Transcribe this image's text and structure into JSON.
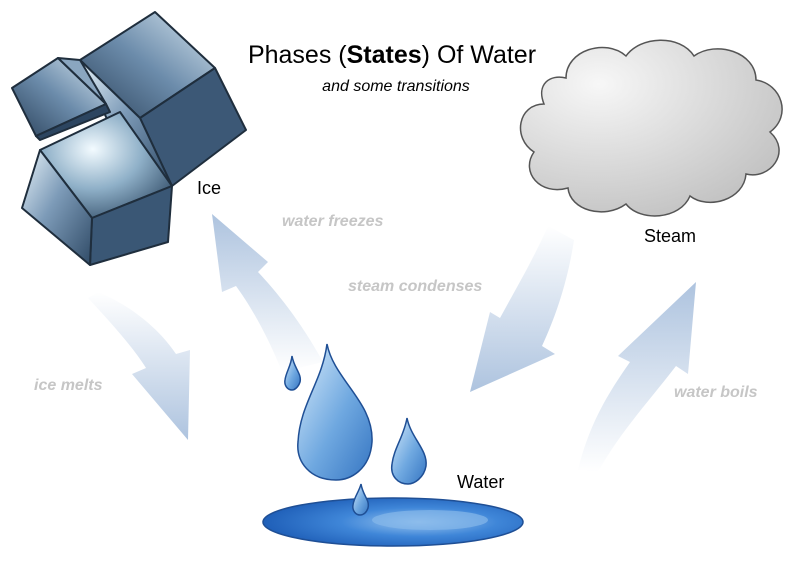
{
  "title": {
    "prefix": "Phases (",
    "bold": "States",
    "suffix": ") Of Water",
    "subtitle": "and some transitions"
  },
  "phases": {
    "ice": "Ice",
    "steam": "Steam",
    "water": "Water"
  },
  "transitions": {
    "water_freezes": "water freezes",
    "steam_condenses": "steam condenses",
    "ice_melts": "ice melts",
    "water_boils": "water boils"
  },
  "colors": {
    "arrow": "#a9c0dd",
    "transition_text": "#c6c6c6",
    "cloud_fill": "#d8d8d8",
    "cloud_stroke": "#555555",
    "drop_fill": "#6fa8e0",
    "puddle_fill": "#2a6fcf",
    "ice_face": "#5e7f9e"
  }
}
